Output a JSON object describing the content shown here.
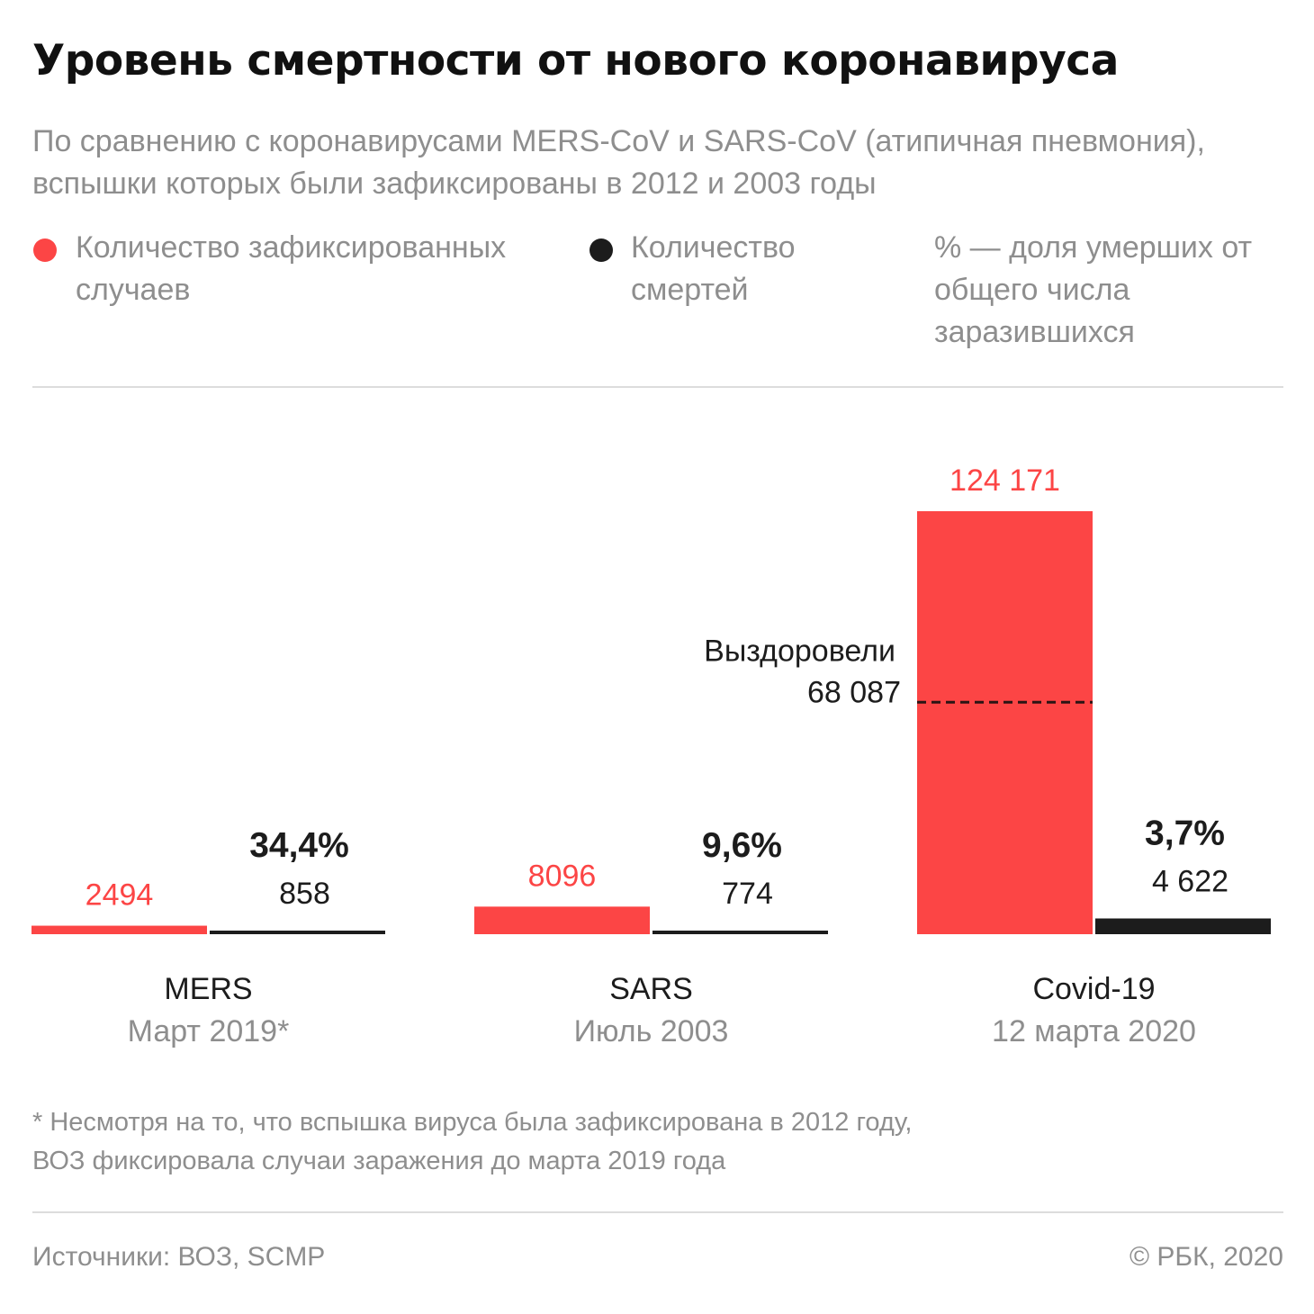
{
  "title": "Уровень смертности от нового коронавируса",
  "subtitle": "По сравнению с коронавирусами MERS-CoV и SARS-CoV (атипичная пневмония), вспышки которых были зафиксированы в 2012 и 2003 годы",
  "legend": {
    "cases": "Количество зафиксированных случаев",
    "deaths": "Количество смертей",
    "percent": "% — доля умерших от общего числа заразившихся"
  },
  "footnote": {
    "line1": "* Несмотря на то, что вспышка вируса была зафиксирована в 2012 году,",
    "line2": "ВОЗ фиксировала случаи заражения до марта 2019 года"
  },
  "footer": {
    "source": "Источники: ВОЗ, SCMP",
    "copyright": "© РБК, 2020"
  },
  "colors": {
    "cases": "#fc4545",
    "deaths": "#1c1c1c",
    "title": "#111111",
    "muted": "#8e8e8e",
    "rule": "#dcdcdc"
  },
  "chart_data": {
    "type": "bar",
    "categories": [
      "MERS",
      "SARS",
      "Covid-19"
    ],
    "category_dates": [
      "Март 2019*",
      "Июль 2003",
      "12 марта 2020"
    ],
    "series": [
      {
        "name": "Количество зафиксированных случаев",
        "values": [
          2494,
          8096,
          124171
        ],
        "labels": [
          "2494",
          "8096",
          "124 171"
        ]
      },
      {
        "name": "Количество смертей",
        "values": [
          858,
          774,
          4622
        ],
        "labels": [
          "858",
          "774",
          "4 622"
        ]
      }
    ],
    "mortality_percent": [
      34.4,
      9.6,
      3.7
    ],
    "mortality_labels": [
      "34,4%",
      "9,6%",
      "3,7%"
    ],
    "annotation": {
      "category": "Covid-19",
      "label": "Выздоровели",
      "value": 68087,
      "value_label": "68 087"
    },
    "ylim": [
      0,
      124171
    ],
    "grid": false,
    "legend_position": "top"
  }
}
